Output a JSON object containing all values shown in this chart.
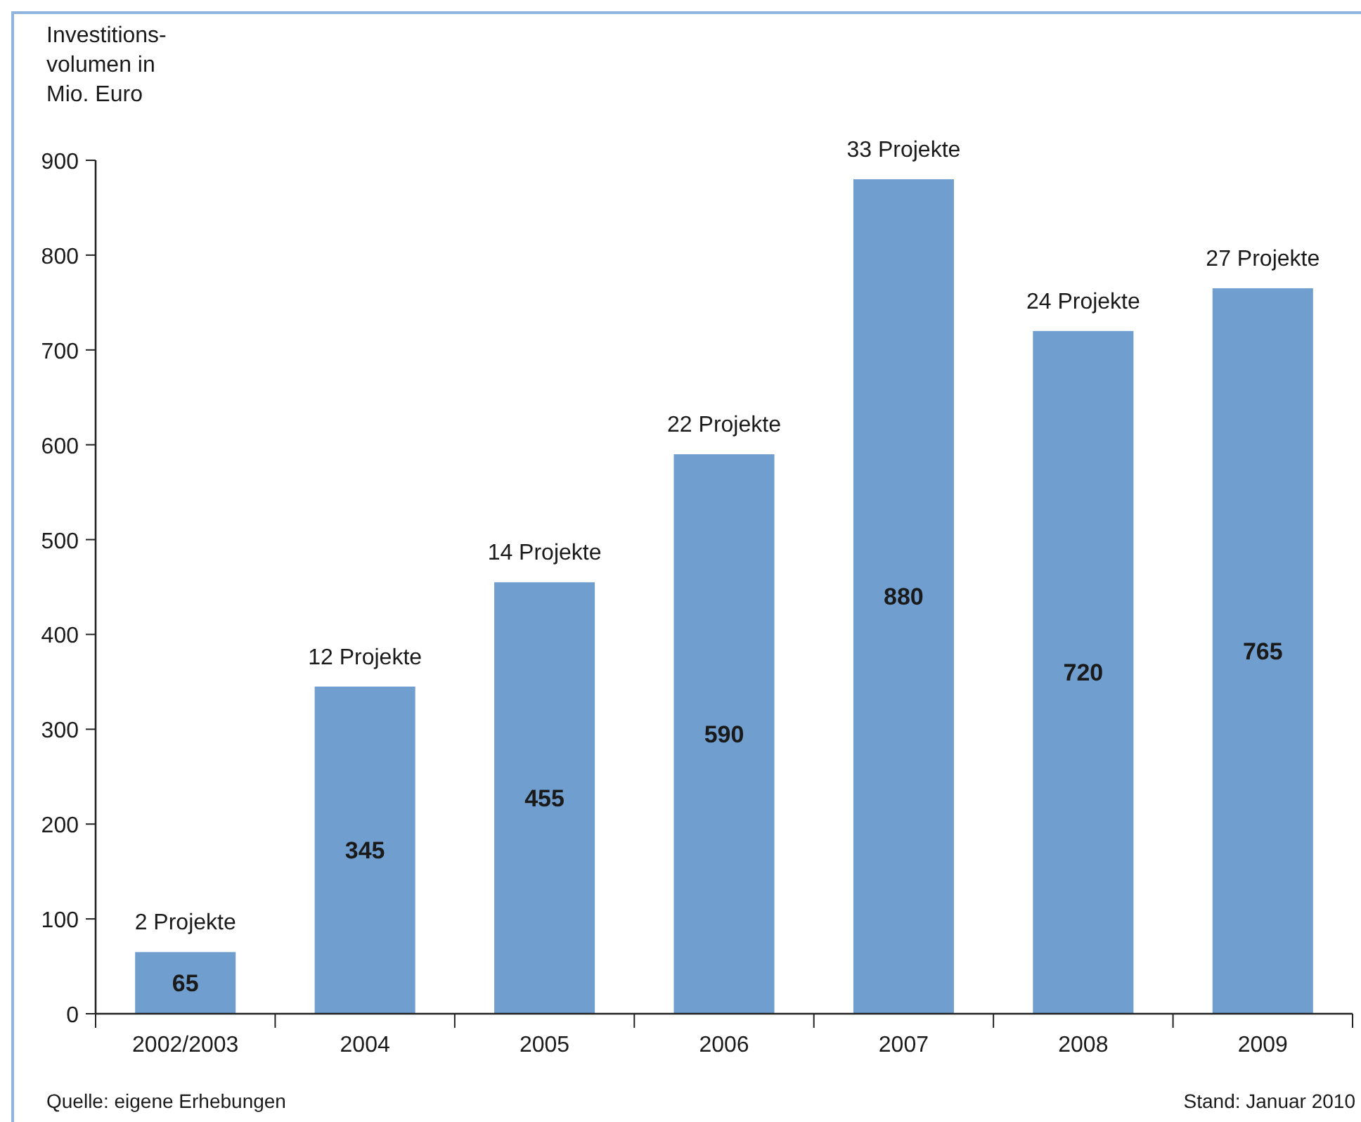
{
  "chart_data": {
    "type": "bar",
    "ylabel": "Investitions-\nvolumen in\nMio. Euro",
    "categories": [
      "2002/2003",
      "2004",
      "2005",
      "2006",
      "2007",
      "2008",
      "2009"
    ],
    "values": [
      65,
      345,
      455,
      590,
      880,
      720,
      765
    ],
    "color": "#6f9ecf",
    "ylim": [
      0,
      900
    ],
    "yticks": [
      0,
      100,
      200,
      300,
      400,
      500,
      600,
      700,
      800,
      900
    ],
    "grid": false,
    "data_labels": true,
    "annotations": [
      {
        "text": "2 Projekte",
        "x": "2002/2003",
        "y": 65
      },
      {
        "text": "12 Projekte",
        "x": "2004",
        "y": 345
      },
      {
        "text": "14 Projekte",
        "x": "2005",
        "y": 455
      },
      {
        "text": "22 Projekte",
        "x": "2006",
        "y": 590
      },
      {
        "text": "33 Projekte",
        "x": "2007",
        "y": 880
      },
      {
        "text": "24 Projekte",
        "x": "2008",
        "y": 720
      },
      {
        "text": "27 Projekte",
        "x": "2009",
        "y": 765
      },
      "Quelle: eigene Erhebungen",
      "Stand: Januar 2010"
    ]
  }
}
